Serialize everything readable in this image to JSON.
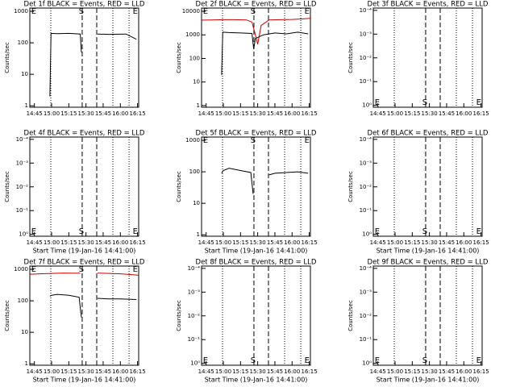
{
  "chart_data": [
    {
      "type": "line",
      "title": "Det 1f BLACK = Events, RED = LLD",
      "ylabel": "Counts/sec",
      "log_y": true,
      "ylim": [
        0.9,
        1270
      ],
      "yticks": [
        1,
        10,
        100,
        1000
      ],
      "xlim": [
        881,
        976
      ],
      "xticks": [
        {
          "value": 885,
          "label": "14:45"
        },
        {
          "value": 900,
          "label": "15:00"
        },
        {
          "value": 915,
          "label": "15:15"
        },
        {
          "value": 930,
          "label": "15:30"
        },
        {
          "value": 945,
          "label": "15:45"
        },
        {
          "value": 960,
          "label": "16:00"
        },
        {
          "value": 975,
          "label": "16:15"
        }
      ],
      "vlines": [
        {
          "x": 899.3,
          "style": "dotted"
        },
        {
          "x": 926.7,
          "style": "dashed"
        },
        {
          "x": 939.4,
          "style": "dashed"
        },
        {
          "x": 953.5,
          "style": "dotted"
        },
        {
          "x": 967.6,
          "style": "dotted"
        }
      ],
      "annotation_position": "top",
      "annotations": [
        {
          "text": "E",
          "x": 884.5
        },
        {
          "text": "S",
          "x": 926
        },
        {
          "text": "E",
          "x": 973
        }
      ],
      "series": [
        {
          "color": "#000000",
          "x": [
            898.5,
            899.5,
            905,
            915,
            925,
            926,
            933,
            940,
            950,
            965,
            974
          ],
          "values": [
            2,
            200,
            195,
            200,
            190,
            50,
            null,
            190,
            185,
            190,
            130
          ]
        }
      ]
    },
    {
      "type": "line",
      "title": "Det 2f BLACK = Events, RED = LLD",
      "ylabel": "Counts/sec",
      "log_y": true,
      "ylim": [
        0.85,
        13700
      ],
      "yticks": [
        1,
        10,
        100,
        1000,
        10000
      ],
      "xlim": [
        881,
        976
      ],
      "xticks": [
        {
          "value": 885,
          "label": "14:45"
        },
        {
          "value": 900,
          "label": "15:00"
        },
        {
          "value": 915,
          "label": "15:15"
        },
        {
          "value": 930,
          "label": "15:30"
        },
        {
          "value": 945,
          "label": "15:45"
        },
        {
          "value": 960,
          "label": "16:00"
        },
        {
          "value": 975,
          "label": "16:15"
        }
      ],
      "vlines": [
        {
          "x": 899.3,
          "style": "dotted"
        },
        {
          "x": 926.7,
          "style": "dashed"
        },
        {
          "x": 939.4,
          "style": "dashed"
        },
        {
          "x": 953.5,
          "style": "dotted"
        },
        {
          "x": 967.6,
          "style": "dotted"
        }
      ],
      "annotation_position": "top",
      "annotations": [
        {
          "text": "E",
          "x": 884.5
        },
        {
          "text": "S",
          "x": 926
        },
        {
          "text": "E",
          "x": 973
        }
      ],
      "series": [
        {
          "color": "#000000",
          "x": [
            898.5,
            899.5,
            905,
            915,
            925,
            926.5,
            928,
            935,
            945,
            955,
            965,
            974
          ],
          "values": [
            20,
            1300,
            1250,
            1200,
            1150,
            250,
            700,
            1000,
            1200,
            1100,
            1300,
            1100
          ]
        },
        {
          "color": "#cc0000",
          "x": [
            881,
            890,
            900,
            910,
            920,
            925,
            928,
            930,
            933,
            940,
            950,
            960,
            970,
            976
          ],
          "values": [
            4200,
            4300,
            4400,
            4400,
            4300,
            3500,
            1000,
            400,
            2500,
            4300,
            4400,
            4500,
            4800,
            5000
          ]
        }
      ]
    },
    {
      "type": "line",
      "title": "Det 3f BLACK = Events, RED = LLD",
      "ylabel": "Counts/sec",
      "log_y": true,
      "ylim": [
        1.2,
        8e-05
      ],
      "yticks": [
        {
          "value": 0.0001,
          "label": "10⁻⁴"
        },
        {
          "value": 0.001,
          "label": "10⁻³"
        },
        {
          "value": 0.01,
          "label": "10⁻²"
        },
        {
          "value": 0.1,
          "label": "10⁻¹"
        },
        {
          "value": 1,
          "label": "10⁰"
        }
      ],
      "xlim": [
        881,
        976
      ],
      "xticks": [
        {
          "value": 885,
          "label": "14:45"
        },
        {
          "value": 900,
          "label": "15:00"
        },
        {
          "value": 915,
          "label": "15:15"
        },
        {
          "value": 930,
          "label": "15:30"
        },
        {
          "value": 945,
          "label": "15:45"
        },
        {
          "value": 960,
          "label": "16:00"
        },
        {
          "value": 975,
          "label": "16:15"
        }
      ],
      "vlines": [
        {
          "x": 899.3,
          "style": "dotted"
        },
        {
          "x": 926.7,
          "style": "dashed"
        },
        {
          "x": 939.4,
          "style": "dashed"
        },
        {
          "x": 953.5,
          "style": "dotted"
        },
        {
          "x": 967.6,
          "style": "dotted"
        }
      ],
      "annotation_position": "bottom",
      "annotations": [
        {
          "text": "E",
          "x": 884.5
        },
        {
          "text": "S",
          "x": 926
        },
        {
          "text": "E",
          "x": 973
        }
      ],
      "series": []
    },
    {
      "type": "line",
      "title": "Det 4f BLACK = Events, RED = LLD",
      "ylabel": "Counts/sec",
      "xlabel": "Start Time (19-Jan-16 14:41:00)",
      "log_y": true,
      "ylim": [
        1.2,
        8e-05
      ],
      "yticks": [
        {
          "value": 0.0001,
          "label": "10⁻⁴"
        },
        {
          "value": 0.001,
          "label": "10⁻³"
        },
        {
          "value": 0.01,
          "label": "10⁻²"
        },
        {
          "value": 0.1,
          "label": "10⁻¹"
        },
        {
          "value": 1,
          "label": "10⁰"
        }
      ],
      "xlim": [
        881,
        976
      ],
      "xticks": [
        {
          "value": 885,
          "label": "14:45"
        },
        {
          "value": 900,
          "label": "15:00"
        },
        {
          "value": 915,
          "label": "15:15"
        },
        {
          "value": 930,
          "label": "15:30"
        },
        {
          "value": 945,
          "label": "15:45"
        },
        {
          "value": 960,
          "label": "16:00"
        },
        {
          "value": 975,
          "label": "16:15"
        }
      ],
      "vlines": [
        {
          "x": 899.3,
          "style": "dotted"
        },
        {
          "x": 926.7,
          "style": "dashed"
        },
        {
          "x": 939.4,
          "style": "dashed"
        },
        {
          "x": 953.5,
          "style": "dotted"
        },
        {
          "x": 967.6,
          "style": "dotted"
        }
      ],
      "annotation_position": "bottom",
      "annotations": [
        {
          "text": "E",
          "x": 884.5
        },
        {
          "text": "S",
          "x": 926
        },
        {
          "text": "E",
          "x": 973
        }
      ],
      "series": []
    },
    {
      "type": "line",
      "title": "Det 5f BLACK = Events, RED = LLD",
      "ylabel": "Counts/sec",
      "xlabel": "Start Time (19-Jan-16 14:41:00)",
      "log_y": true,
      "ylim": [
        0.9,
        1270
      ],
      "yticks": [
        1,
        10,
        100,
        1000
      ],
      "xlim": [
        881,
        976
      ],
      "xticks": [
        {
          "value": 885,
          "label": "14:45"
        },
        {
          "value": 900,
          "label": "15:00"
        },
        {
          "value": 915,
          "label": "15:15"
        },
        {
          "value": 930,
          "label": "15:30"
        },
        {
          "value": 945,
          "label": "15:45"
        },
        {
          "value": 960,
          "label": "16:00"
        },
        {
          "value": 975,
          "label": "16:15"
        }
      ],
      "vlines": [
        {
          "x": 899.3,
          "style": "dotted"
        },
        {
          "x": 926.7,
          "style": "dashed"
        },
        {
          "x": 939.4,
          "style": "dashed"
        },
        {
          "x": 953.5,
          "style": "dotted"
        },
        {
          "x": 967.6,
          "style": "dotted"
        }
      ],
      "annotation_position": "top",
      "annotations": [
        {
          "text": "E",
          "x": 884.5
        },
        {
          "text": "S",
          "x": 926
        },
        {
          "text": "E",
          "x": 973
        }
      ],
      "series": [
        {
          "color": "#000000",
          "x": [
            898.5,
            900,
            905,
            915,
            924,
            926,
            933,
            940,
            945,
            955,
            965,
            974
          ],
          "values": [
            90,
            110,
            130,
            110,
            95,
            20,
            null,
            80,
            90,
            95,
            100,
            90
          ]
        }
      ]
    },
    {
      "type": "line",
      "title": "Det 6f BLACK = Events, RED = LLD",
      "ylabel": "Counts/sec",
      "xlabel": "Start Time (19-Jan-16 14:41:00)",
      "log_y": true,
      "ylim": [
        1.2,
        8e-05
      ],
      "yticks": [
        {
          "value": 0.0001,
          "label": "10⁻⁴"
        },
        {
          "value": 0.001,
          "label": "10⁻³"
        },
        {
          "value": 0.01,
          "label": "10⁻²"
        },
        {
          "value": 0.1,
          "label": "10⁻¹"
        },
        {
          "value": 1,
          "label": "10⁰"
        }
      ],
      "xlim": [
        881,
        976
      ],
      "xticks": [
        {
          "value": 885,
          "label": "14:45"
        },
        {
          "value": 900,
          "label": "15:00"
        },
        {
          "value": 915,
          "label": "15:15"
        },
        {
          "value": 930,
          "label": "15:30"
        },
        {
          "value": 945,
          "label": "15:45"
        },
        {
          "value": 960,
          "label": "16:00"
        },
        {
          "value": 975,
          "label": "16:15"
        }
      ],
      "vlines": [
        {
          "x": 899.3,
          "style": "dotted"
        },
        {
          "x": 926.7,
          "style": "dashed"
        },
        {
          "x": 939.4,
          "style": "dashed"
        },
        {
          "x": 953.5,
          "style": "dotted"
        },
        {
          "x": 967.6,
          "style": "dotted"
        }
      ],
      "annotation_position": "bottom",
      "annotations": [
        {
          "text": "E",
          "x": 884.5
        },
        {
          "text": "S",
          "x": 926
        },
        {
          "text": "E",
          "x": 973
        }
      ],
      "series": []
    },
    {
      "type": "line",
      "title": "Det 7f BLACK = Events, RED = LLD",
      "ylabel": "Counts/sec",
      "xlabel": "Start Time (19-Jan-16 14:41:00)",
      "log_y": true,
      "ylim": [
        0.9,
        1270
      ],
      "yticks": [
        1,
        10,
        100,
        1000
      ],
      "xlim": [
        881,
        976
      ],
      "xticks": [
        {
          "value": 885,
          "label": "14:45"
        },
        {
          "value": 900,
          "label": "15:00"
        },
        {
          "value": 915,
          "label": "15:15"
        },
        {
          "value": 930,
          "label": "15:30"
        },
        {
          "value": 945,
          "label": "15:45"
        },
        {
          "value": 960,
          "label": "16:00"
        },
        {
          "value": 975,
          "label": "16:15"
        }
      ],
      "vlines": [
        {
          "x": 899.3,
          "style": "dotted"
        },
        {
          "x": 926.7,
          "style": "dashed"
        },
        {
          "x": 939.4,
          "style": "dashed"
        },
        {
          "x": 953.5,
          "style": "dotted"
        },
        {
          "x": 967.6,
          "style": "dotted"
        }
      ],
      "annotation_position": "top",
      "annotations": [
        {
          "text": "E",
          "x": 884.5
        },
        {
          "text": "S",
          "x": 926
        },
        {
          "text": "E",
          "x": 973
        }
      ],
      "series": [
        {
          "color": "#000000",
          "x": [
            898.5,
            900,
            905,
            915,
            924,
            926,
            933,
            940,
            950,
            960,
            974
          ],
          "values": [
            140,
            150,
            160,
            150,
            130,
            30,
            null,
            120,
            115,
            115,
            110
          ]
        },
        {
          "color": "#cc0000",
          "x": [
            881,
            890,
            900,
            910,
            920,
            925,
            933,
            940,
            950,
            960,
            970,
            976
          ],
          "values": [
            700,
            720,
            740,
            760,
            750,
            760,
            null,
            760,
            740,
            720,
            680,
            650
          ]
        }
      ]
    },
    {
      "type": "line",
      "title": "Det 8f BLACK = Events, RED = LLD",
      "ylabel": "Counts/sec",
      "xlabel": "Start Time (19-Jan-16 14:41:00)",
      "log_y": true,
      "ylim": [
        1.2,
        8e-05
      ],
      "yticks": [
        {
          "value": 0.0001,
          "label": "10⁻⁴"
        },
        {
          "value": 0.001,
          "label": "10⁻³"
        },
        {
          "value": 0.01,
          "label": "10⁻²"
        },
        {
          "value": 0.1,
          "label": "10⁻¹"
        },
        {
          "value": 1,
          "label": "10⁰"
        }
      ],
      "xlim": [
        881,
        976
      ],
      "xticks": [
        {
          "value": 885,
          "label": "14:45"
        },
        {
          "value": 900,
          "label": "15:00"
        },
        {
          "value": 915,
          "label": "15:15"
        },
        {
          "value": 930,
          "label": "15:30"
        },
        {
          "value": 945,
          "label": "15:45"
        },
        {
          "value": 960,
          "label": "16:00"
        },
        {
          "value": 975,
          "label": "16:15"
        }
      ],
      "vlines": [
        {
          "x": 899.3,
          "style": "dotted"
        },
        {
          "x": 926.7,
          "style": "dashed"
        },
        {
          "x": 939.4,
          "style": "dashed"
        },
        {
          "x": 953.5,
          "style": "dotted"
        },
        {
          "x": 967.6,
          "style": "dotted"
        }
      ],
      "annotation_position": "bottom",
      "annotations": [
        {
          "text": "E",
          "x": 884.5
        },
        {
          "text": "S",
          "x": 926
        },
        {
          "text": "E",
          "x": 973
        }
      ],
      "series": []
    },
    {
      "type": "line",
      "title": "Det 9f BLACK = Events, RED = LLD",
      "ylabel": "Counts/sec",
      "xlabel": "Start Time (19-Jan-16 14:41:00)",
      "log_y": true,
      "ylim": [
        1.2,
        8e-05
      ],
      "yticks": [
        {
          "value": 0.0001,
          "label": "10⁻⁴"
        },
        {
          "value": 0.001,
          "label": "10⁻³"
        },
        {
          "value": 0.01,
          "label": "10⁻²"
        },
        {
          "value": 0.1,
          "label": "10⁻¹"
        },
        {
          "value": 1,
          "label": "10⁰"
        }
      ],
      "xlim": [
        881,
        976
      ],
      "xticks": [
        {
          "value": 885,
          "label": "14:45"
        },
        {
          "value": 900,
          "label": "15:00"
        },
        {
          "value": 915,
          "label": "15:15"
        },
        {
          "value": 930,
          "label": "15:30"
        },
        {
          "value": 945,
          "label": "15:45"
        },
        {
          "value": 960,
          "label": "16:00"
        },
        {
          "value": 975,
          "label": "16:15"
        }
      ],
      "vlines": [
        {
          "x": 899.3,
          "style": "dotted"
        },
        {
          "x": 926.7,
          "style": "dashed"
        },
        {
          "x": 939.4,
          "style": "dashed"
        },
        {
          "x": 953.5,
          "style": "dotted"
        },
        {
          "x": 967.6,
          "style": "dotted"
        }
      ],
      "annotation_position": "bottom",
      "annotations": [
        {
          "text": "E",
          "x": 884.5
        },
        {
          "text": "S",
          "x": 926
        },
        {
          "text": "E",
          "x": 973
        }
      ],
      "series": []
    }
  ]
}
